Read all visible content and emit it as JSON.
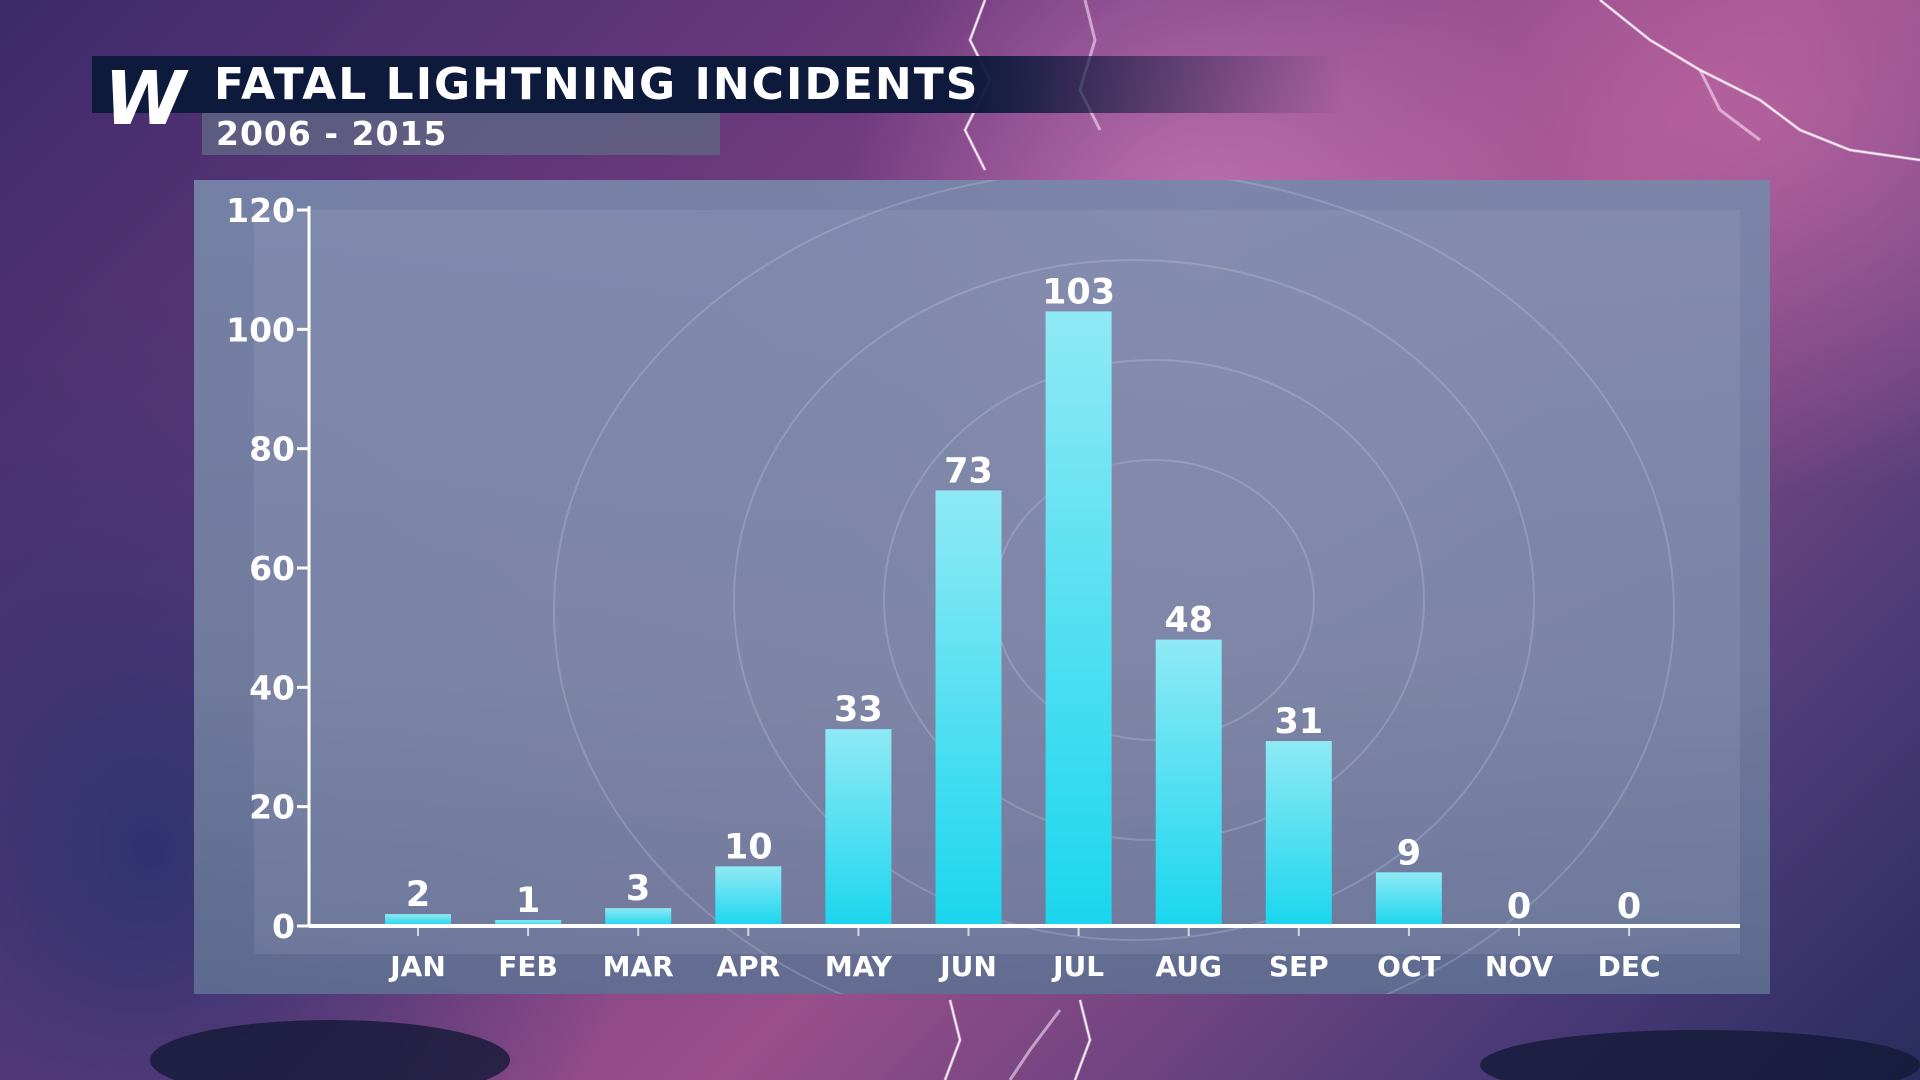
{
  "header": {
    "logo_letter": "W",
    "title": "FATAL LIGHTNING INCIDENTS",
    "subtitle": "2006 - 2015"
  },
  "colors": {
    "bar_top": "#8fe9f5",
    "bar_bottom": "#1ad6ee",
    "banner": "#0e1a3c",
    "text": "#ffffff"
  },
  "chart_data": {
    "type": "bar",
    "title": "FATAL LIGHTNING INCIDENTS",
    "subtitle": "2006 - 2015",
    "categories": [
      "JAN",
      "FEB",
      "MAR",
      "APR",
      "MAY",
      "JUN",
      "JUL",
      "AUG",
      "SEP",
      "OCT",
      "NOV",
      "DEC"
    ],
    "values": [
      2,
      1,
      3,
      10,
      33,
      73,
      103,
      48,
      31,
      9,
      0,
      0
    ],
    "data_labels": [
      "2",
      "1",
      "3",
      "10",
      "33",
      "73",
      "103",
      "48",
      "31",
      "9",
      "0",
      "0"
    ],
    "yticks": [
      0,
      20,
      40,
      60,
      80,
      100,
      120
    ],
    "ytick_labels": [
      "0",
      "20",
      "40",
      "60",
      "80",
      "100",
      "120"
    ],
    "ylim": [
      0,
      120
    ],
    "xlabel": "",
    "ylabel": "",
    "grid": false,
    "legend": "none"
  }
}
